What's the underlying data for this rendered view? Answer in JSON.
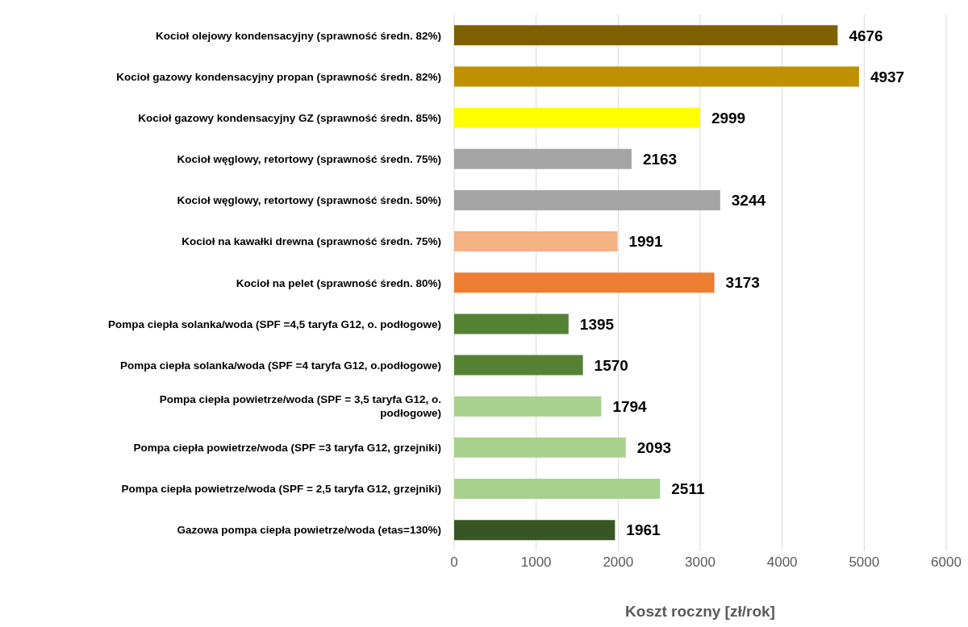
{
  "chart_data": {
    "type": "bar",
    "orientation": "horizontal",
    "xlabel": "Koszt roczny [zł/rok]",
    "categories": [
      "Kocioł olejowy kondensacyjny (sprawność średn. 82%)",
      "Kocioł gazowy kondensacyjny propan (sprawność średn. 82%)",
      "Kocioł gazowy kondensacyjny GZ (sprawność średn. 85%)",
      "Kocioł węglowy, retortowy (sprawność średn. 75%)",
      "Kocioł węglowy, retortowy (sprawność średn. 50%)",
      "Kocioł na kawałki drewna (sprawność średn. 75%)",
      "Kocioł na pelet (sprawność średn. 80%)",
      "Pompa ciepła solanka/woda (SPF =4,5 taryfa G12, o. podłogowe)",
      "Pompa ciepła solanka/woda (SPF =4 taryfa G12, o.podłogowe)",
      "Pompa ciepła powietrze/woda (SPF = 3,5 taryfa G12, o. podłogowe)",
      "Pompa ciepła powietrze/woda (SPF =3 taryfa G12, grzejniki)",
      "Pompa ciepła powietrze/woda (SPF = 2,5 taryfa G12, grzejniki)",
      "Gazowa pompa ciepła powietrze/woda (etas=130%)"
    ],
    "values": [
      4676,
      4937,
      2999,
      2163,
      3244,
      1991,
      3173,
      1395,
      1570,
      1794,
      2093,
      2511,
      1961
    ],
    "colors": [
      "#7f6000",
      "#bf9000",
      "#ffff00",
      "#a5a5a5",
      "#a5a5a5",
      "#f4b183",
      "#ed7d31",
      "#548235",
      "#548235",
      "#a9d18e",
      "#a9d18e",
      "#a9d18e",
      "#375623"
    ],
    "xlim": [
      0,
      6000
    ],
    "xticks": [
      0,
      1000,
      2000,
      3000,
      4000,
      5000,
      6000
    ],
    "grid": "x",
    "data_labels": true
  }
}
